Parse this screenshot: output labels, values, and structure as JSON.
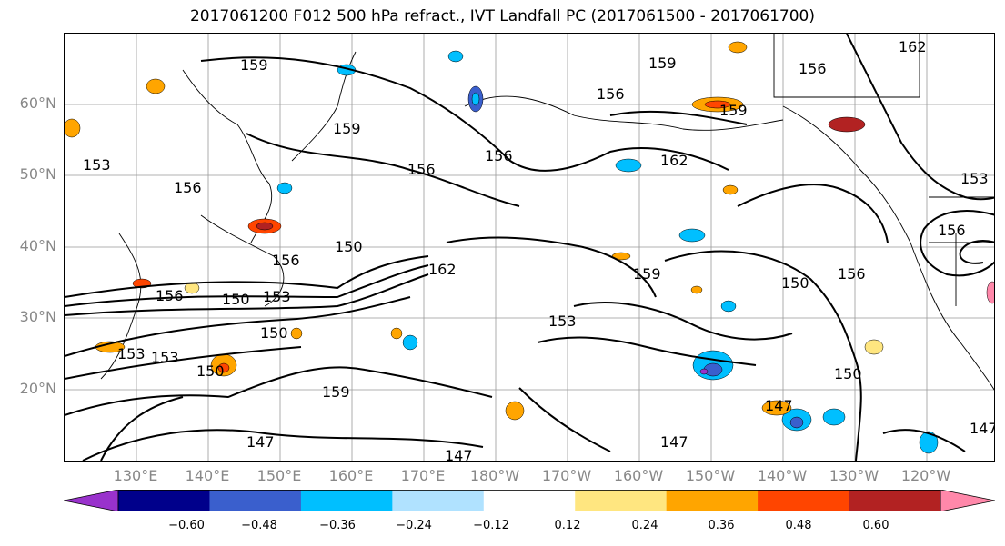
{
  "title": "2017061200 F012 500 hPa refract., IVT Landfall PC (2017061500 - 2017061700)",
  "map": {
    "lat_labels": [
      "60°N",
      "50°N",
      "40°N",
      "30°N",
      "20°N"
    ],
    "lon_labels": [
      "130°E",
      "140°E",
      "150°E",
      "160°E",
      "170°E",
      "180°W",
      "170°W",
      "160°W",
      "150°W",
      "140°W",
      "130°W",
      "120°W"
    ],
    "contour_labels": [
      "159",
      "159",
      "156",
      "162",
      "156",
      "156",
      "159",
      "159",
      "156",
      "156",
      "162",
      "153",
      "156",
      "150",
      "153",
      "150",
      "156",
      "162",
      "159",
      "153",
      "150",
      "156",
      "153",
      "150",
      "150",
      "159",
      "147",
      "147",
      "150",
      "147",
      "147",
      "147",
      "156",
      "153",
      "153"
    ]
  },
  "colorbar": {
    "tick_labels": [
      "−0.60",
      "−0.48",
      "−0.36",
      "−0.24",
      "−0.12",
      "0.12",
      "0.24",
      "0.36",
      "0.48",
      "0.60"
    ],
    "colors": [
      "#9932cc",
      "#00008b",
      "#3a5fcd",
      "#00bfff",
      "#b0e2ff",
      "#ffffff",
      "#ffe680",
      "#ffa500",
      "#ff4500",
      "#b22222",
      "#ff88aa"
    ]
  }
}
